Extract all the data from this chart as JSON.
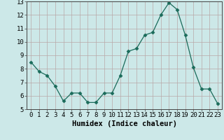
{
  "x": [
    0,
    1,
    2,
    3,
    4,
    5,
    6,
    7,
    8,
    9,
    10,
    11,
    12,
    13,
    14,
    15,
    16,
    17,
    18,
    19,
    20,
    21,
    22,
    23
  ],
  "y": [
    8.5,
    7.8,
    7.5,
    6.7,
    5.6,
    6.2,
    6.2,
    5.5,
    5.5,
    6.2,
    6.2,
    7.5,
    9.3,
    9.5,
    10.5,
    10.7,
    12.0,
    12.9,
    12.4,
    10.5,
    8.1,
    6.5,
    6.5,
    5.4
  ],
  "line_color": "#1a6b5a",
  "marker": "D",
  "marker_size": 2.5,
  "bg_color": "#cce8e8",
  "grid_color": "#b8a8a8",
  "xlabel": "Humidex (Indice chaleur)",
  "xlim": [
    -0.5,
    23.5
  ],
  "ylim": [
    5,
    13
  ],
  "yticks": [
    5,
    6,
    7,
    8,
    9,
    10,
    11,
    12,
    13
  ],
  "xticks": [
    0,
    1,
    2,
    3,
    4,
    5,
    6,
    7,
    8,
    9,
    10,
    11,
    12,
    13,
    14,
    15,
    16,
    17,
    18,
    19,
    20,
    21,
    22,
    23
  ],
  "xlabel_fontsize": 7.5,
  "tick_fontsize": 6.5,
  "font_family": "monospace"
}
